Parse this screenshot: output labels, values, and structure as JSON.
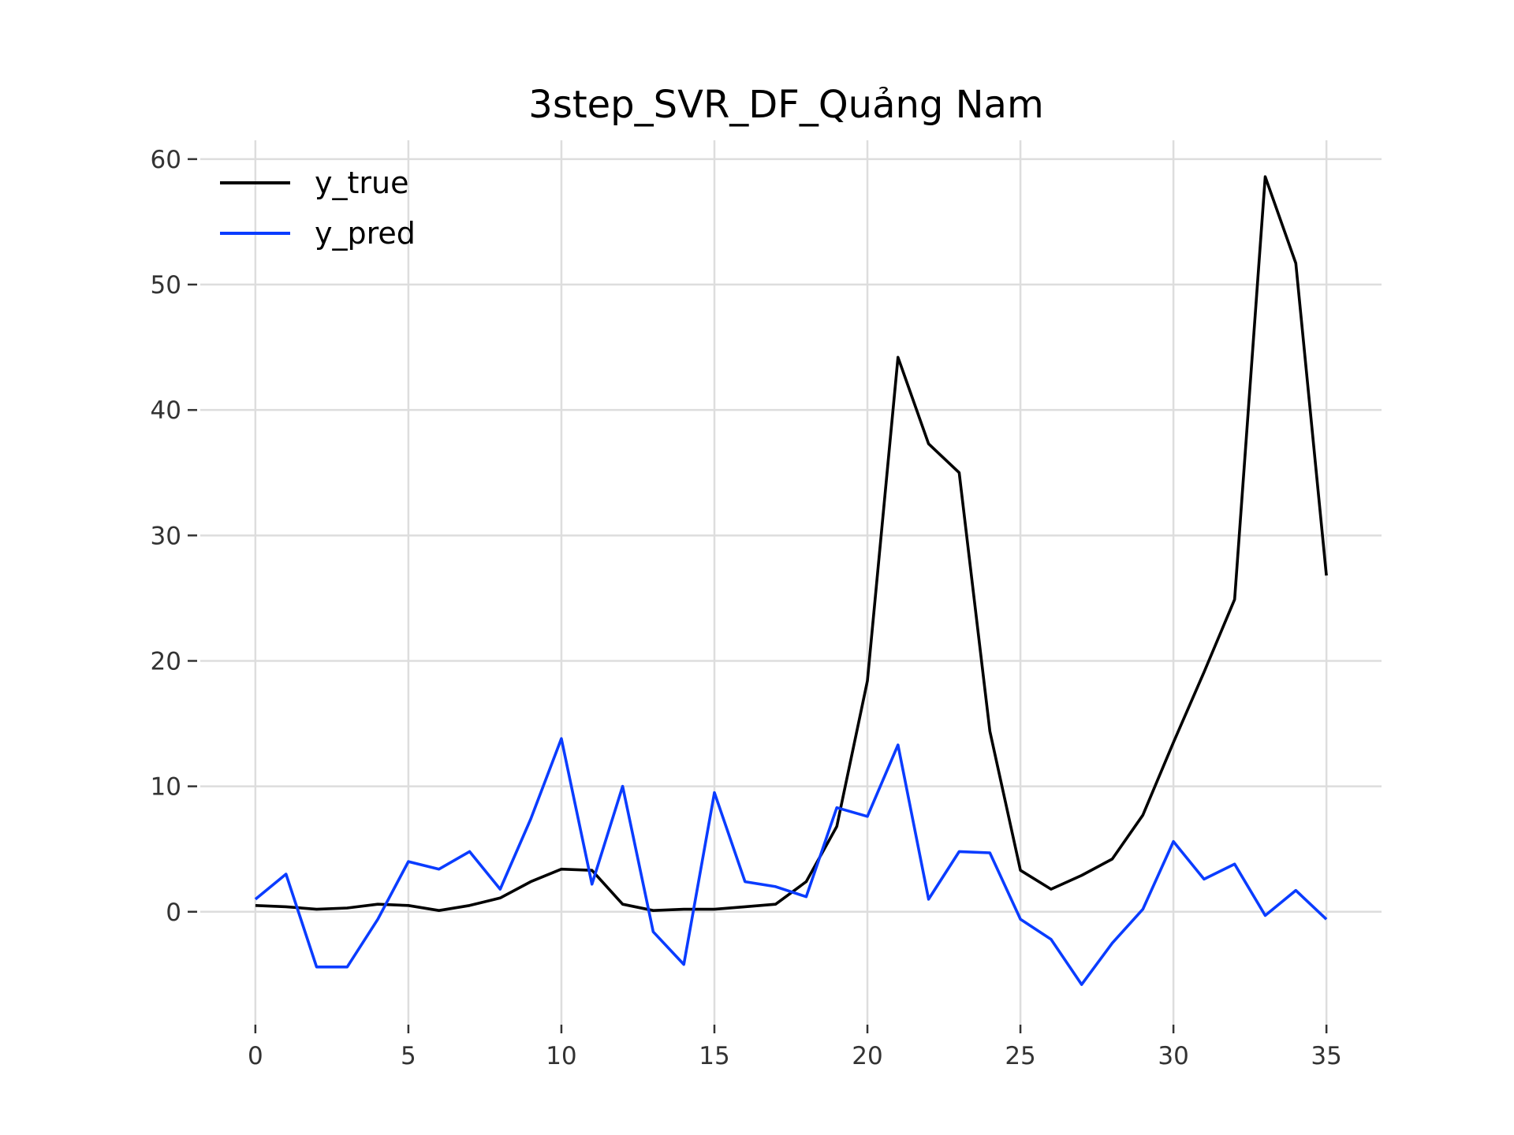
{
  "chart_data": {
    "type": "line",
    "title": "3step_SVR_DF_Quảng Nam",
    "xlabel": "",
    "ylabel": "",
    "xlim": [
      -1.8,
      36.8
    ],
    "ylim": [
      -9,
      61.5
    ],
    "xticks": [
      0,
      5,
      10,
      15,
      20,
      25,
      30,
      35
    ],
    "yticks": [
      0,
      10,
      20,
      30,
      40,
      50,
      60
    ],
    "grid": true,
    "legend_position": "top-left",
    "x": [
      0,
      1,
      2,
      3,
      4,
      5,
      6,
      7,
      8,
      9,
      10,
      11,
      12,
      13,
      14,
      15,
      16,
      17,
      18,
      19,
      20,
      21,
      22,
      23,
      24,
      25,
      26,
      27,
      28,
      29,
      30,
      31,
      32,
      33,
      34,
      35
    ],
    "series": [
      {
        "name": "y_true",
        "color": "#000000",
        "values": [
          0.5,
          0.4,
          0.2,
          0.3,
          0.6,
          0.5,
          0.1,
          0.5,
          1.1,
          2.4,
          3.4,
          3.3,
          0.6,
          0.1,
          0.2,
          0.2,
          0.4,
          0.6,
          2.4,
          6.8,
          18.4,
          44.2,
          37.3,
          35.0,
          14.4,
          3.3,
          1.8,
          2.9,
          4.2,
          7.7,
          13.5,
          19.1,
          24.9,
          58.6,
          51.7,
          26.8
        ]
      },
      {
        "name": "y_pred",
        "color": "#0a3cff",
        "values": [
          1.0,
          3.0,
          -4.4,
          -4.4,
          -0.6,
          4.0,
          3.4,
          4.8,
          1.8,
          7.4,
          13.8,
          2.2,
          10.0,
          -1.6,
          -4.2,
          9.5,
          2.4,
          2.0,
          1.2,
          8.3,
          7.6,
          13.3,
          1.0,
          4.8,
          4.7,
          -0.6,
          -2.2,
          -5.8,
          -2.5,
          0.2,
          5.6,
          2.6,
          3.8,
          -0.3,
          1.7,
          -0.6
        ]
      }
    ]
  }
}
